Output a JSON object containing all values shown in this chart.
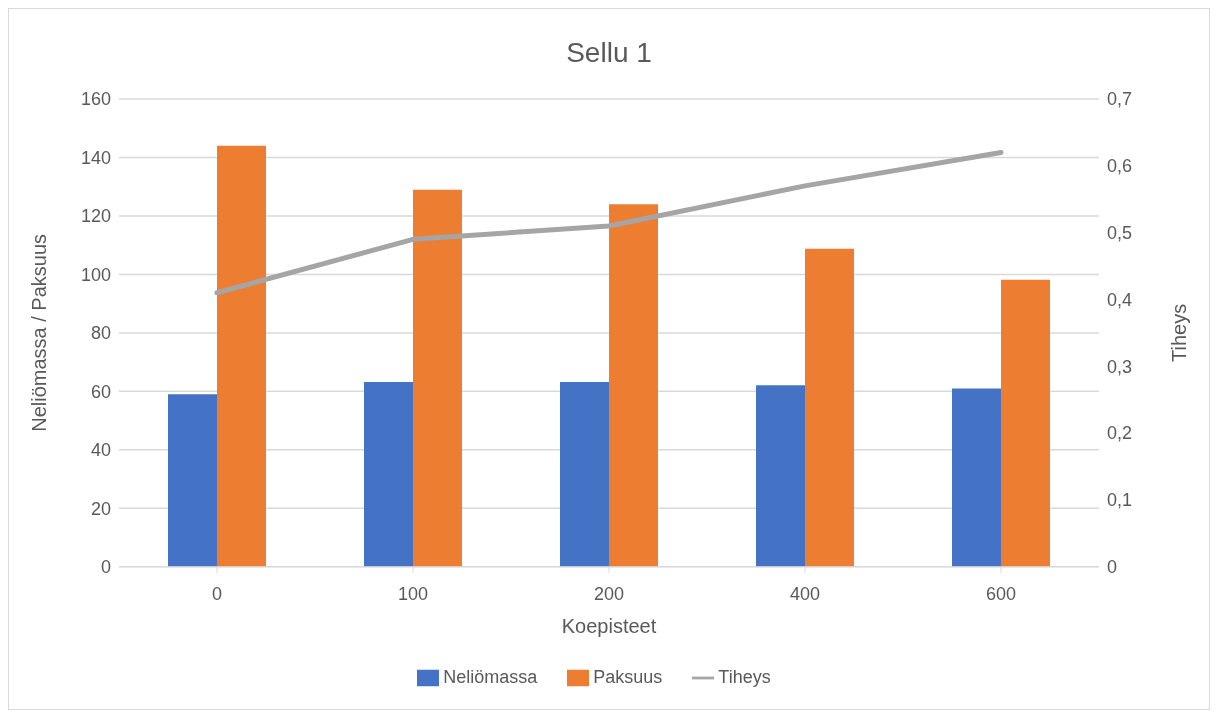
{
  "chart_data": {
    "type": "bar",
    "title": "Sellu 1",
    "xlabel": "Koepisteet",
    "ylabel": "Neliömassa / Paksuus",
    "y2label": "Tiheys",
    "categories": [
      "0",
      "100",
      "200",
      "400",
      "600"
    ],
    "series": [
      {
        "name": "Neliömassa",
        "color": "#4472c4",
        "values": [
          59,
          63.2,
          63.2,
          62.1,
          61
        ]
      },
      {
        "name": "Paksuus",
        "color": "#ed7d31",
        "values": [
          144,
          129,
          124,
          108.8,
          98.2
        ]
      },
      {
        "name": "Tiheys",
        "type": "line",
        "axis": "y2",
        "color": "#a5a5a5",
        "values": [
          0.41,
          0.49,
          0.51,
          0.57,
          0.62
        ]
      }
    ],
    "ylim": [
      0,
      160
    ],
    "yticks": [
      0,
      20,
      40,
      60,
      80,
      100,
      120,
      140,
      160
    ],
    "y2lim": [
      0,
      0.7
    ],
    "y2ticks": [
      {
        "value": 0,
        "label": "0"
      },
      {
        "value": 0.1,
        "label": "0,1"
      },
      {
        "value": 0.2,
        "label": "0,2"
      },
      {
        "value": 0.3,
        "label": "0,3"
      },
      {
        "value": 0.4,
        "label": "0,4"
      },
      {
        "value": 0.5,
        "label": "0,5"
      },
      {
        "value": 0.6,
        "label": "0,6"
      },
      {
        "value": 0.7,
        "label": "0,7"
      }
    ],
    "grid": "y",
    "legend": "bottom",
    "marker": "none"
  }
}
